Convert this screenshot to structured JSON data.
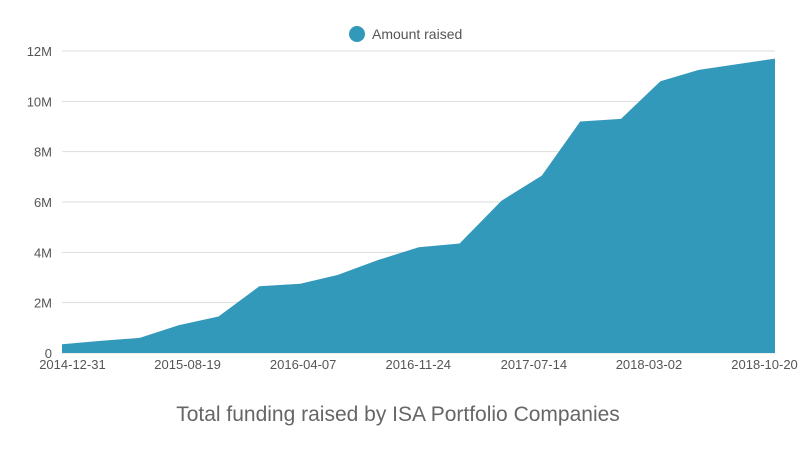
{
  "colors": {
    "series": "#3399bb",
    "grid": "#dddddd",
    "text": "#555555"
  },
  "chart_data": {
    "type": "area",
    "title": "Total funding raised by ISA Portfolio Companies",
    "xlabel": "",
    "ylabel": "",
    "legend_position": "top-center",
    "grid": true,
    "ylim": [
      0,
      12000000
    ],
    "yticks": [
      0,
      2000000,
      4000000,
      6000000,
      8000000,
      10000000,
      12000000
    ],
    "ytick_labels": [
      "0",
      "2M",
      "4M",
      "6M",
      "8M",
      "10M",
      "12M"
    ],
    "xticks": [
      "2014-12-31",
      "2015-08-19",
      "2016-04-07",
      "2016-11-24",
      "2017-07-14",
      "2018-03-02",
      "2018-10-20"
    ],
    "xlim": [
      "2014-12-10",
      "2018-11-10"
    ],
    "series": [
      {
        "name": "Amount raised",
        "points": [
          [
            "2014-12-10",
            350000
          ],
          [
            "2015-02-25",
            480000
          ],
          [
            "2015-05-15",
            600000
          ],
          [
            "2015-08-01",
            1100000
          ],
          [
            "2015-10-20",
            1450000
          ],
          [
            "2016-01-10",
            2650000
          ],
          [
            "2016-04-01",
            2750000
          ],
          [
            "2016-06-15",
            3100000
          ],
          [
            "2016-09-05",
            3700000
          ],
          [
            "2016-11-25",
            4200000
          ],
          [
            "2017-02-15",
            4350000
          ],
          [
            "2017-05-10",
            6050000
          ],
          [
            "2017-07-30",
            7050000
          ],
          [
            "2017-10-15",
            9200000
          ],
          [
            "2018-01-05",
            9300000
          ],
          [
            "2018-03-25",
            10800000
          ],
          [
            "2018-06-10",
            11250000
          ],
          [
            "2018-11-10",
            11700000
          ]
        ]
      }
    ]
  }
}
